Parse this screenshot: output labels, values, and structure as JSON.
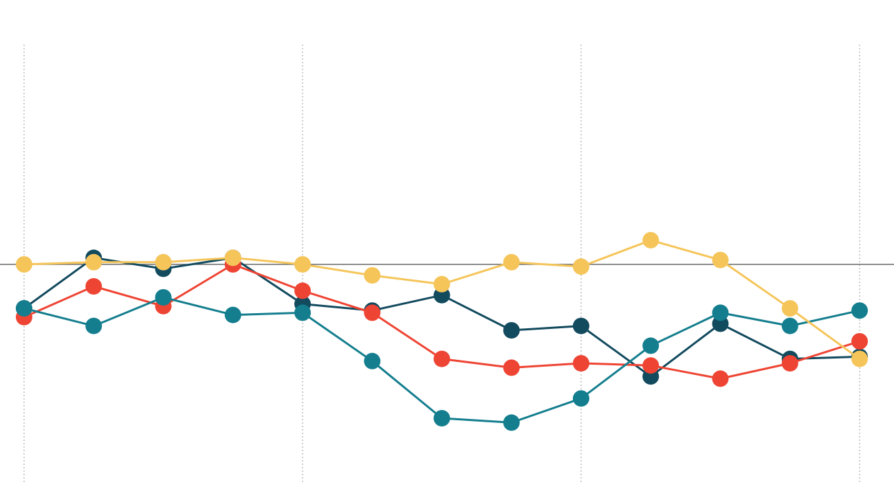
{
  "chart_data": {
    "type": "line",
    "x": [
      0,
      1,
      2,
      3,
      4,
      5,
      6,
      7,
      8,
      9,
      10,
      11,
      12
    ],
    "xlim": [
      0,
      12
    ],
    "ylim": [
      -8.4,
      10
    ],
    "baseline": 0,
    "grid": {
      "vertical": true,
      "horizontal": false,
      "vertical_at": [
        0,
        4,
        8,
        12
      ]
    },
    "legend": "none",
    "series": [
      {
        "color": "#124a5e",
        "values": [
          -2.0,
          0.3,
          -0.2,
          0.3,
          -1.8,
          -2.1,
          -1.4,
          -3.0,
          -2.8,
          -5.1,
          -2.7,
          -4.3,
          -4.2
        ]
      },
      {
        "color": "#ee4433",
        "values": [
          -2.4,
          -1.0,
          -1.9,
          0.0,
          -1.2,
          -2.2,
          -4.3,
          -4.7,
          -4.5,
          -4.6,
          -5.2,
          -4.5,
          -3.5
        ]
      },
      {
        "color": "#147e8e",
        "values": [
          -2.0,
          -2.8,
          -1.5,
          -2.3,
          -2.2,
          -4.4,
          -7.0,
          -7.2,
          -6.1,
          -3.7,
          -2.2,
          -2.8,
          -2.1
        ]
      },
      {
        "color": "#f5c55a",
        "values": [
          0.0,
          0.1,
          0.1,
          0.3,
          0.0,
          -0.5,
          -0.9,
          0.1,
          -0.1,
          1.1,
          0.2,
          -2.0,
          -4.3
        ]
      }
    ]
  }
}
